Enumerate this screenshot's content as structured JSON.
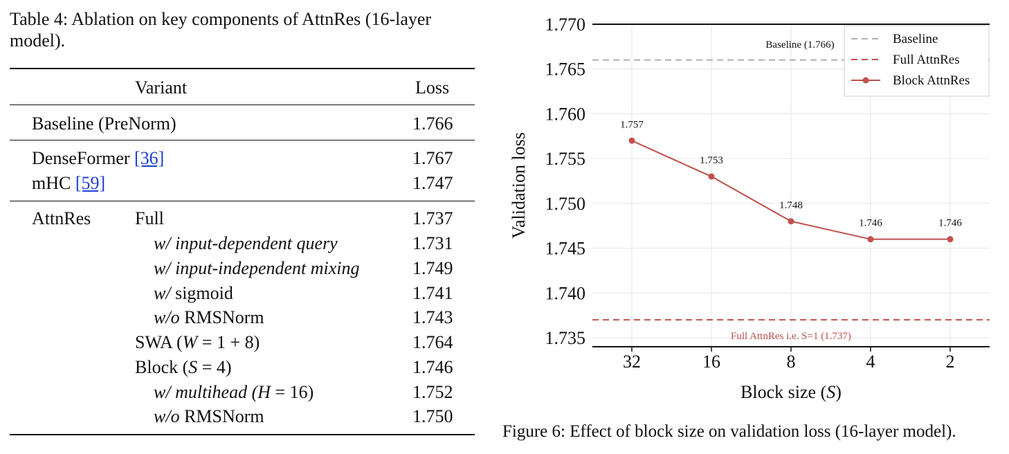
{
  "table": {
    "caption": "Table 4: Ablation on key components of AttnRes (16-layer model).",
    "header": {
      "variant": "Variant",
      "loss": "Loss"
    },
    "baseline": {
      "label": "Baseline (PreNorm)",
      "loss": "1.766"
    },
    "densefomer": {
      "label": "DenseFormer ",
      "ref": "[36]",
      "loss": "1.767"
    },
    "mhc": {
      "label": "mHC ",
      "ref": "[59]",
      "loss": "1.747"
    },
    "attnres": {
      "group": "AttnRes",
      "rows": [
        {
          "label": "Full",
          "loss": "1.737"
        },
        {
          "prefix": "w/",
          "label": " input-dependent query",
          "loss": "1.731"
        },
        {
          "prefix": "w/",
          "label": " input-independent mixing",
          "loss": "1.749"
        },
        {
          "prefix": "w/",
          "label": " sigmoid",
          "loss": "1.741"
        },
        {
          "prefix": "w/o",
          "label": " RMSNorm",
          "loss": "1.743"
        },
        {
          "label": "SWA (",
          "math": "W",
          "rest": " = 1 + 8)",
          "loss": "1.764"
        },
        {
          "label": "Block (",
          "math": "S",
          "rest": " = 4)",
          "loss": "1.746"
        },
        {
          "prefix": "w/",
          "label": " multihead (",
          "math": "H",
          "rest": " = 16)",
          "loss": "1.752"
        },
        {
          "prefix": "w/o",
          "label": " RMSNorm",
          "loss": "1.750"
        }
      ]
    }
  },
  "figure": {
    "caption": "Figure 6: Effect of block size on validation loss (16-layer model)."
  },
  "chart_data": {
    "type": "line",
    "categories": [
      "32",
      "16",
      "8",
      "4",
      "2"
    ],
    "series": [
      {
        "name": "Block AttnRes",
        "values": [
          1.757,
          1.753,
          1.748,
          1.746,
          1.746
        ],
        "color": "#c0504d"
      }
    ],
    "data_labels": [
      "1.757",
      "1.753",
      "1.748",
      "1.746",
      "1.746"
    ],
    "baselines": [
      {
        "name": "Baseline",
        "value": 1.766,
        "annotation": "Baseline (1.766)",
        "color": "#b0b0b0"
      },
      {
        "name": "Full AttnRes",
        "value": 1.737,
        "annotation": "Full AttnRes i.e. S=1 (1.737)",
        "color": "#c0504d"
      }
    ],
    "legend": [
      "Baseline",
      "Full AttnRes",
      "Block AttnRes"
    ],
    "legend_position": "top-right",
    "xlabel_prefix": "Block size (",
    "xlabel_var": "S",
    "xlabel_suffix": ")",
    "ylabel": "Validation loss",
    "yticks": [
      "1.735",
      "1.740",
      "1.745",
      "1.750",
      "1.755",
      "1.760",
      "1.765",
      "1.770"
    ],
    "ylim": [
      1.734,
      1.77
    ]
  }
}
